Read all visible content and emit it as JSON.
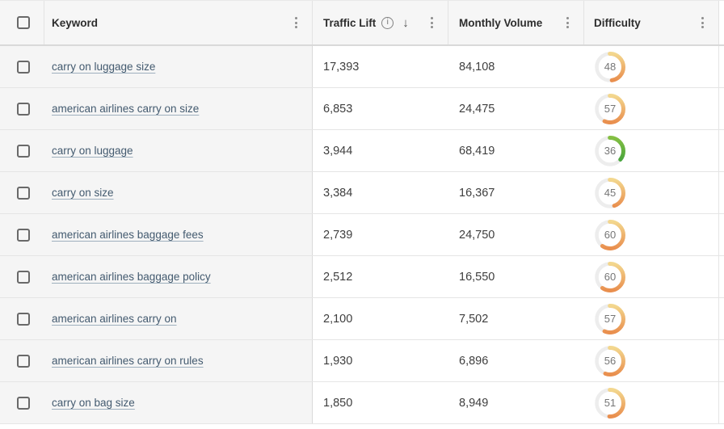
{
  "header": {
    "keyword_label": "Keyword",
    "traffic_lift_label": "Traffic Lift",
    "monthly_volume_label": "Monthly Volume",
    "difficulty_label": "Difficulty",
    "icons": {
      "info_glyph": "i",
      "sort_desc_glyph": "↓"
    }
  },
  "rows": [
    {
      "keyword": "carry on luggage size",
      "traffic_lift": "17,393",
      "monthly_volume": "84,108",
      "difficulty": 48,
      "difficulty_color": "amber"
    },
    {
      "keyword": "american airlines carry on size",
      "traffic_lift": "6,853",
      "monthly_volume": "24,475",
      "difficulty": 57,
      "difficulty_color": "amber"
    },
    {
      "keyword": "carry on luggage",
      "traffic_lift": "3,944",
      "monthly_volume": "68,419",
      "difficulty": 36,
      "difficulty_color": "green"
    },
    {
      "keyword": "carry on size",
      "traffic_lift": "3,384",
      "monthly_volume": "16,367",
      "difficulty": 45,
      "difficulty_color": "amber"
    },
    {
      "keyword": "american airlines baggage fees",
      "traffic_lift": "2,739",
      "monthly_volume": "24,750",
      "difficulty": 60,
      "difficulty_color": "amber"
    },
    {
      "keyword": "american airlines baggage policy",
      "traffic_lift": "2,512",
      "monthly_volume": "16,550",
      "difficulty": 60,
      "difficulty_color": "amber"
    },
    {
      "keyword": "american airlines carry on",
      "traffic_lift": "2,100",
      "monthly_volume": "7,502",
      "difficulty": 57,
      "difficulty_color": "amber"
    },
    {
      "keyword": "american airlines carry on rules",
      "traffic_lift": "1,930",
      "monthly_volume": "6,896",
      "difficulty": 56,
      "difficulty_color": "amber"
    },
    {
      "keyword": "carry on bag size",
      "traffic_lift": "1,850",
      "monthly_volume": "8,949",
      "difficulty": 51,
      "difficulty_color": "amber"
    }
  ],
  "colors": {
    "link": "#435a6f",
    "row_stripe": "#f5f5f5",
    "gauge_track": "#ededed",
    "gauge_text": "#767676",
    "amber_start": "#f3d78e",
    "amber_end": "#e98f4e",
    "green_start": "#84bf43",
    "green_end": "#3ea03c"
  }
}
